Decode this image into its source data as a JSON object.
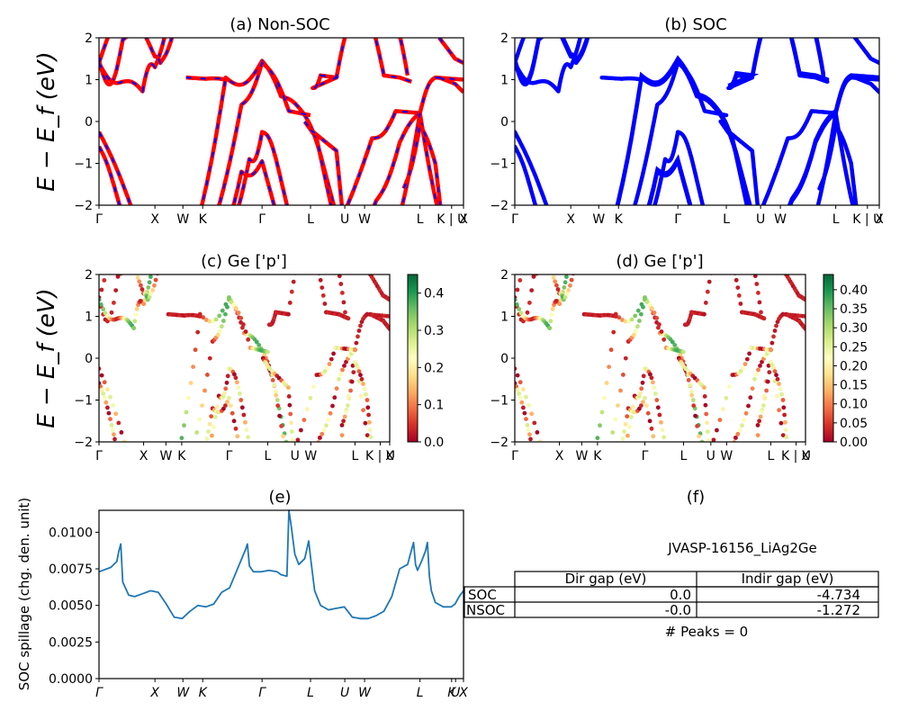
{
  "chart_data": [
    {
      "id": "a",
      "type": "line",
      "title": "(a) Non-SOC",
      "ylabel": "E − E_f (eV)",
      "ylim": [
        -2,
        2
      ],
      "yticks": [
        "2",
        "1",
        "0",
        "−1",
        "−2"
      ],
      "xticks": [
        "Γ",
        "X",
        "W",
        "K",
        "Γ",
        "L",
        "U",
        "W",
        "L",
        "K | U",
        "X"
      ],
      "x_positions": [
        0,
        1.414,
        2.121,
        2.621,
        4.121,
        5.346,
        6.212,
        6.712,
        8.112,
        8.912,
        9.212
      ],
      "colors": [
        "#ff0000",
        "#0000ff"
      ],
      "style": "red solid with blue dashes"
    },
    {
      "id": "b",
      "type": "line",
      "title": "(b) SOC",
      "ylim": [
        -2,
        2
      ],
      "yticks": [
        "2",
        "1",
        "0",
        "−1",
        "−2"
      ],
      "xticks": [
        "Γ",
        "X",
        "W",
        "K",
        "Γ",
        "L",
        "U",
        "W",
        "L",
        "K | U",
        "X"
      ],
      "colors": [
        "#0000ff"
      ]
    },
    {
      "id": "c",
      "type": "scatter",
      "title": "(c)  Ge ['p']",
      "ylabel": "E − E_f (eV)",
      "ylim": [
        -2,
        2
      ],
      "yticks": [
        "2",
        "1",
        "0",
        "−1",
        "−2"
      ],
      "xticks": [
        "Γ",
        "X",
        "W",
        "K",
        "Γ",
        "L",
        "U",
        "W",
        "L",
        "K | U",
        "X"
      ],
      "colorbar": {
        "range": [
          0,
          0.45
        ],
        "ticks": [
          "0.4",
          "0.3",
          "0.2",
          "0.1",
          "0.0"
        ],
        "tick_values": [
          0.4,
          0.3,
          0.2,
          0.1,
          0.0
        ],
        "colormap": "RdYlGn"
      }
    },
    {
      "id": "d",
      "type": "scatter",
      "title": "(d) Ge ['p']",
      "ylim": [
        -2,
        2
      ],
      "yticks": [
        "2",
        "1",
        "0",
        "−1",
        "−2"
      ],
      "xticks": [
        "Γ",
        "X",
        "W",
        "K",
        "Γ",
        "L",
        "U",
        "W",
        "L",
        "K | U",
        "X"
      ],
      "colorbar": {
        "range": [
          0,
          0.44
        ],
        "ticks": [
          "0.40",
          "0.35",
          "0.30",
          "0.25",
          "0.20",
          "0.15",
          "0.10",
          "0.05",
          "0.00"
        ],
        "tick_values": [
          0.4,
          0.35,
          0.3,
          0.25,
          0.2,
          0.15,
          0.1,
          0.05,
          0.0
        ],
        "colormap": "RdYlGn"
      }
    },
    {
      "id": "e",
      "type": "line",
      "title": "(e)",
      "ylabel": "SOC spillage (chg. den. unit)",
      "ylim": [
        0,
        0.0115
      ],
      "yticks": [
        "0.0100",
        "0.0075",
        "0.0050",
        "0.0025",
        "0.0000"
      ],
      "ytick_values": [
        0.01,
        0.0075,
        0.005,
        0.0025,
        0
      ],
      "xticks": [
        "Γ",
        "X",
        "W",
        "K",
        "Γ",
        "L",
        "U",
        "W",
        "L",
        "K",
        "U",
        "X"
      ],
      "x_positions": [
        0,
        1.414,
        2.121,
        2.621,
        4.121,
        5.346,
        6.212,
        6.712,
        8.112,
        8.912,
        9.012,
        9.212
      ],
      "color": "#1f77b4",
      "series": [
        {
          "x": [
            0,
            0.3,
            0.45,
            0.5,
            0.55,
            0.6,
            0.75,
            0.9,
            1.1,
            1.3,
            1.5,
            1.7,
            1.9,
            2.1,
            2.3,
            2.5,
            2.7,
            2.9,
            3.1,
            3.3,
            3.5,
            3.7,
            3.75,
            3.8,
            3.9,
            4.1,
            4.3,
            4.5,
            4.6,
            4.75,
            4.8,
            4.85,
            4.95,
            5.05,
            5.2,
            5.3,
            5.35,
            5.45,
            5.6,
            5.8,
            6.0,
            6.2,
            6.4,
            6.6,
            6.8,
            7.0,
            7.2,
            7.4,
            7.6,
            7.8,
            7.9,
            7.95,
            8.0,
            8.05,
            8.15,
            8.25,
            8.3,
            8.35,
            8.4,
            8.5,
            8.7,
            8.9,
            9.0,
            9.1,
            9.212
          ],
          "y": [
            0.0073,
            0.0076,
            0.008,
            0.0087,
            0.0092,
            0.0066,
            0.0057,
            0.0056,
            0.0058,
            0.006,
            0.0059,
            0.0051,
            0.0042,
            0.0041,
            0.0046,
            0.005,
            0.0049,
            0.0051,
            0.0059,
            0.0062,
            0.0075,
            0.0088,
            0.0092,
            0.0077,
            0.0073,
            0.0073,
            0.0074,
            0.0073,
            0.0071,
            0.007,
            0.0115,
            0.0106,
            0.0085,
            0.0078,
            0.0082,
            0.0094,
            0.0082,
            0.006,
            0.005,
            0.0047,
            0.0048,
            0.0049,
            0.0042,
            0.0041,
            0.0041,
            0.0043,
            0.0046,
            0.0056,
            0.0075,
            0.0078,
            0.0088,
            0.0093,
            0.0078,
            0.0074,
            0.008,
            0.0087,
            0.0093,
            0.007,
            0.006,
            0.0052,
            0.0049,
            0.0049,
            0.0051,
            0.0056,
            0.006
          ]
        }
      ]
    },
    {
      "id": "f",
      "type": "table",
      "title": "(f)",
      "subtitle": "JVASP-16156_LiAg2Ge",
      "columns": [
        "Dir gap (eV)",
        "Indir gap (eV)"
      ],
      "rows": [
        {
          "label": "SOC",
          "values": [
            "0.0",
            "-4.734"
          ]
        },
        {
          "label": "NSOC",
          "values": [
            "-0.0",
            "-1.272"
          ]
        }
      ],
      "footer": "# Peaks = 0"
    }
  ]
}
